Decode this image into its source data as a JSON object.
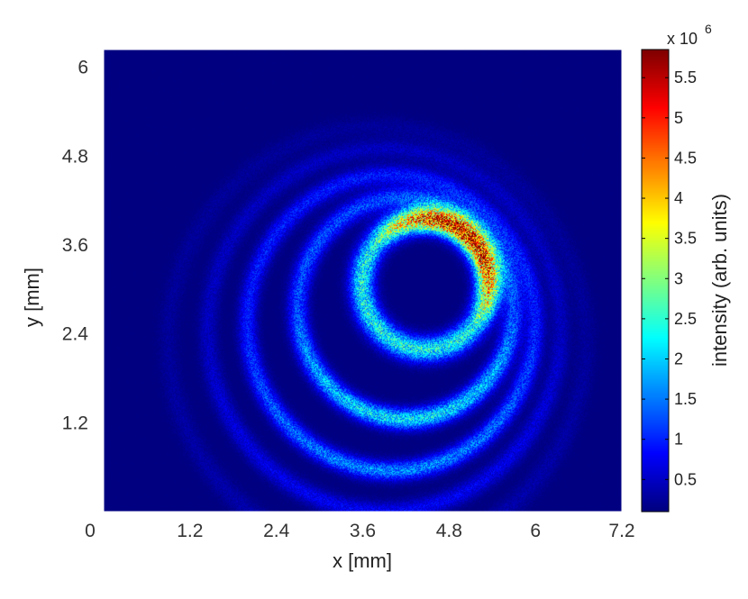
{
  "chart_data": {
    "type": "heatmap",
    "title": "",
    "xlabel": "x [mm]",
    "ylabel": "y [mm]",
    "xlim": [
      0,
      7.2
    ],
    "ylim": [
      0,
      6.24
    ],
    "x_ticks": [
      0,
      1.2,
      2.4,
      3.6,
      4.8,
      6,
      7.2
    ],
    "x_tick_labels": [
      "0",
      "1.2",
      "2.4",
      "3.6",
      "4.8",
      "6",
      "7.2"
    ],
    "y_ticks": [
      1.2,
      2.4,
      3.6,
      4.8,
      6
    ],
    "y_tick_labels": [
      "1.2",
      "2.4",
      "3.6",
      "4.8",
      "6"
    ],
    "colormap": "jet",
    "description_of_data": "concentric interference rings",
    "rings": [
      {
        "cx": 4.47,
        "cy": 3.07,
        "r": 0.88,
        "peak": 5.6,
        "width": 0.17
      },
      {
        "cx": 4.2,
        "cy": 2.75,
        "r": 1.5,
        "peak": 2.2,
        "width": 0.14
      },
      {
        "cx": 4.0,
        "cy": 2.55,
        "r": 2.0,
        "peak": 1.6,
        "width": 0.13
      },
      {
        "cx": 3.9,
        "cy": 2.45,
        "r": 2.45,
        "peak": 0.7,
        "width": 0.13
      },
      {
        "cx": 3.8,
        "cy": 2.3,
        "r": 2.9,
        "peak": 0.3,
        "width": 0.14
      }
    ],
    "colorbar": {
      "label": "intensity (arb. units)",
      "multiplier": "x 10",
      "exponent": "6",
      "min": 0.1,
      "max": 5.85,
      "ticks": [
        0.5,
        1,
        1.5,
        2,
        2.5,
        3,
        3.5,
        4,
        4.5,
        5,
        5.5
      ],
      "tick_labels": [
        "0.5",
        "1",
        "1.5",
        "2",
        "2.5",
        "3",
        "3.5",
        "4",
        "4.5",
        "5",
        "5.5"
      ]
    }
  }
}
